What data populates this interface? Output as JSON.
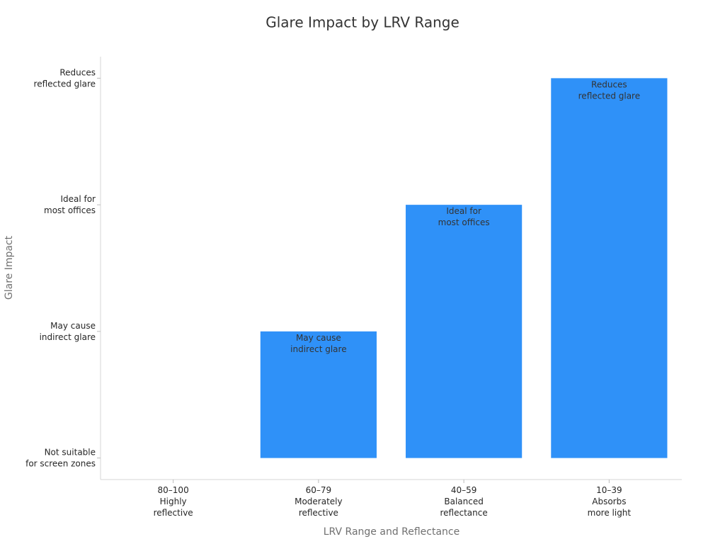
{
  "chart_data": {
    "type": "bar",
    "title": "Glare Impact by LRV Range",
    "x_label": "LRV Range and Reflectance",
    "y_label": "Glare Impact",
    "categories": [
      "80–100\nHighly\nreflective",
      "60–79\nModerately\nreflective",
      "40–59\nBalanced\nreflectance",
      "10–39\nAbsorbs\nmore light"
    ],
    "values": [
      0,
      1,
      2,
      3
    ],
    "value_labels": [
      null,
      "May cause\nindirect glare",
      "Ideal for\nmost offices",
      "Reduces\nreflected glare"
    ],
    "color": "#2f91f8",
    "ylim": [
      -0.17,
      3.17
    ],
    "yticks": [
      {
        "value": 0,
        "label": "Not suitable\nfor screen zones"
      },
      {
        "value": 1,
        "label": "May cause\nindirect glare"
      },
      {
        "value": 2,
        "label": "Ideal for\nmost offices"
      },
      {
        "value": 3,
        "label": "Reduces\nreflected glare"
      }
    ],
    "grid": false
  }
}
